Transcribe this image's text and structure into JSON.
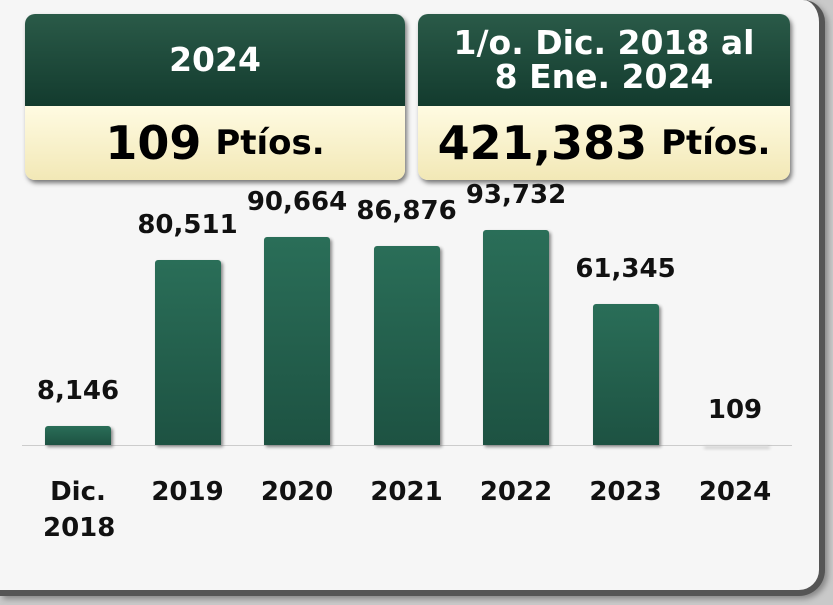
{
  "summary": [
    {
      "title": "2024",
      "value": "109",
      "unit": "Ptíos."
    },
    {
      "title": "1/o. Dic. 2018 al 8 Ene. 2024",
      "value": "421,383",
      "unit": "Ptíos."
    }
  ],
  "chart_data": {
    "type": "bar",
    "categories": [
      "Dic. 2018",
      "2019",
      "2020",
      "2021",
      "2022",
      "2023",
      "2024"
    ],
    "values": [
      8146,
      80511,
      90664,
      86876,
      93732,
      61345,
      109
    ],
    "value_labels": [
      "8,146",
      "80,511",
      "90,664",
      "86,876",
      "93,732",
      "61,345",
      "109"
    ],
    "color": "#2a6e58"
  }
}
